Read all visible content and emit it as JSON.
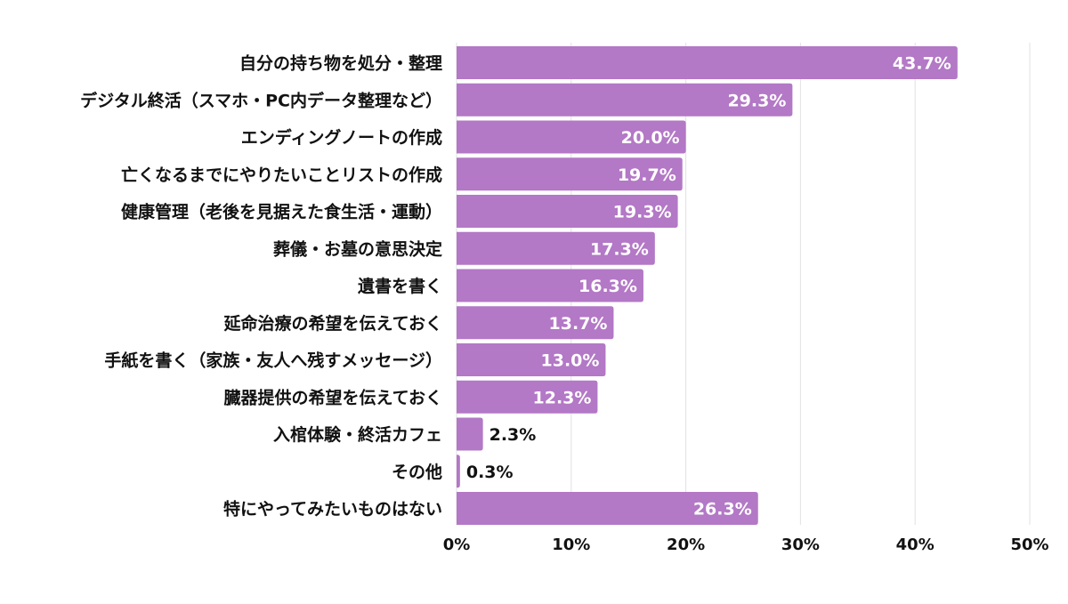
{
  "chart_data": {
    "type": "bar",
    "orientation": "horizontal",
    "categories": [
      "自分の持ち物を処分・整理",
      "デジタル終活（スマホ・PC内データ整理など）",
      "エンディングノートの作成",
      "亡くなるまでにやりたいことリストの作成",
      "健康管理（老後を見据えた食生活・運動）",
      "葬儀・お墓の意思決定",
      "遺書を書く",
      "延命治療の希望を伝えておく",
      "手紙を書く（家族・友人へ残すメッセージ）",
      "臓器提供の希望を伝えておく",
      "入棺体験・終活カフェ",
      "その他",
      "特にやってみたいものはない"
    ],
    "values": [
      43.7,
      29.3,
      20.0,
      19.7,
      19.3,
      17.3,
      16.3,
      13.7,
      13.0,
      12.3,
      2.3,
      0.3,
      26.3
    ],
    "value_labels": [
      "43.7%",
      "29.3%",
      "20.0%",
      "19.7%",
      "19.3%",
      "17.3%",
      "16.3%",
      "13.7%",
      "13.0%",
      "12.3%",
      "2.3%",
      "0.3%",
      "26.3%"
    ],
    "xlim": [
      0,
      50
    ],
    "xticks": [
      "0%",
      "10%",
      "20%",
      "30%",
      "40%",
      "50%"
    ],
    "grid": "vertical",
    "bar_color": "#b378c6",
    "title": "",
    "xlabel": "",
    "ylabel": ""
  }
}
